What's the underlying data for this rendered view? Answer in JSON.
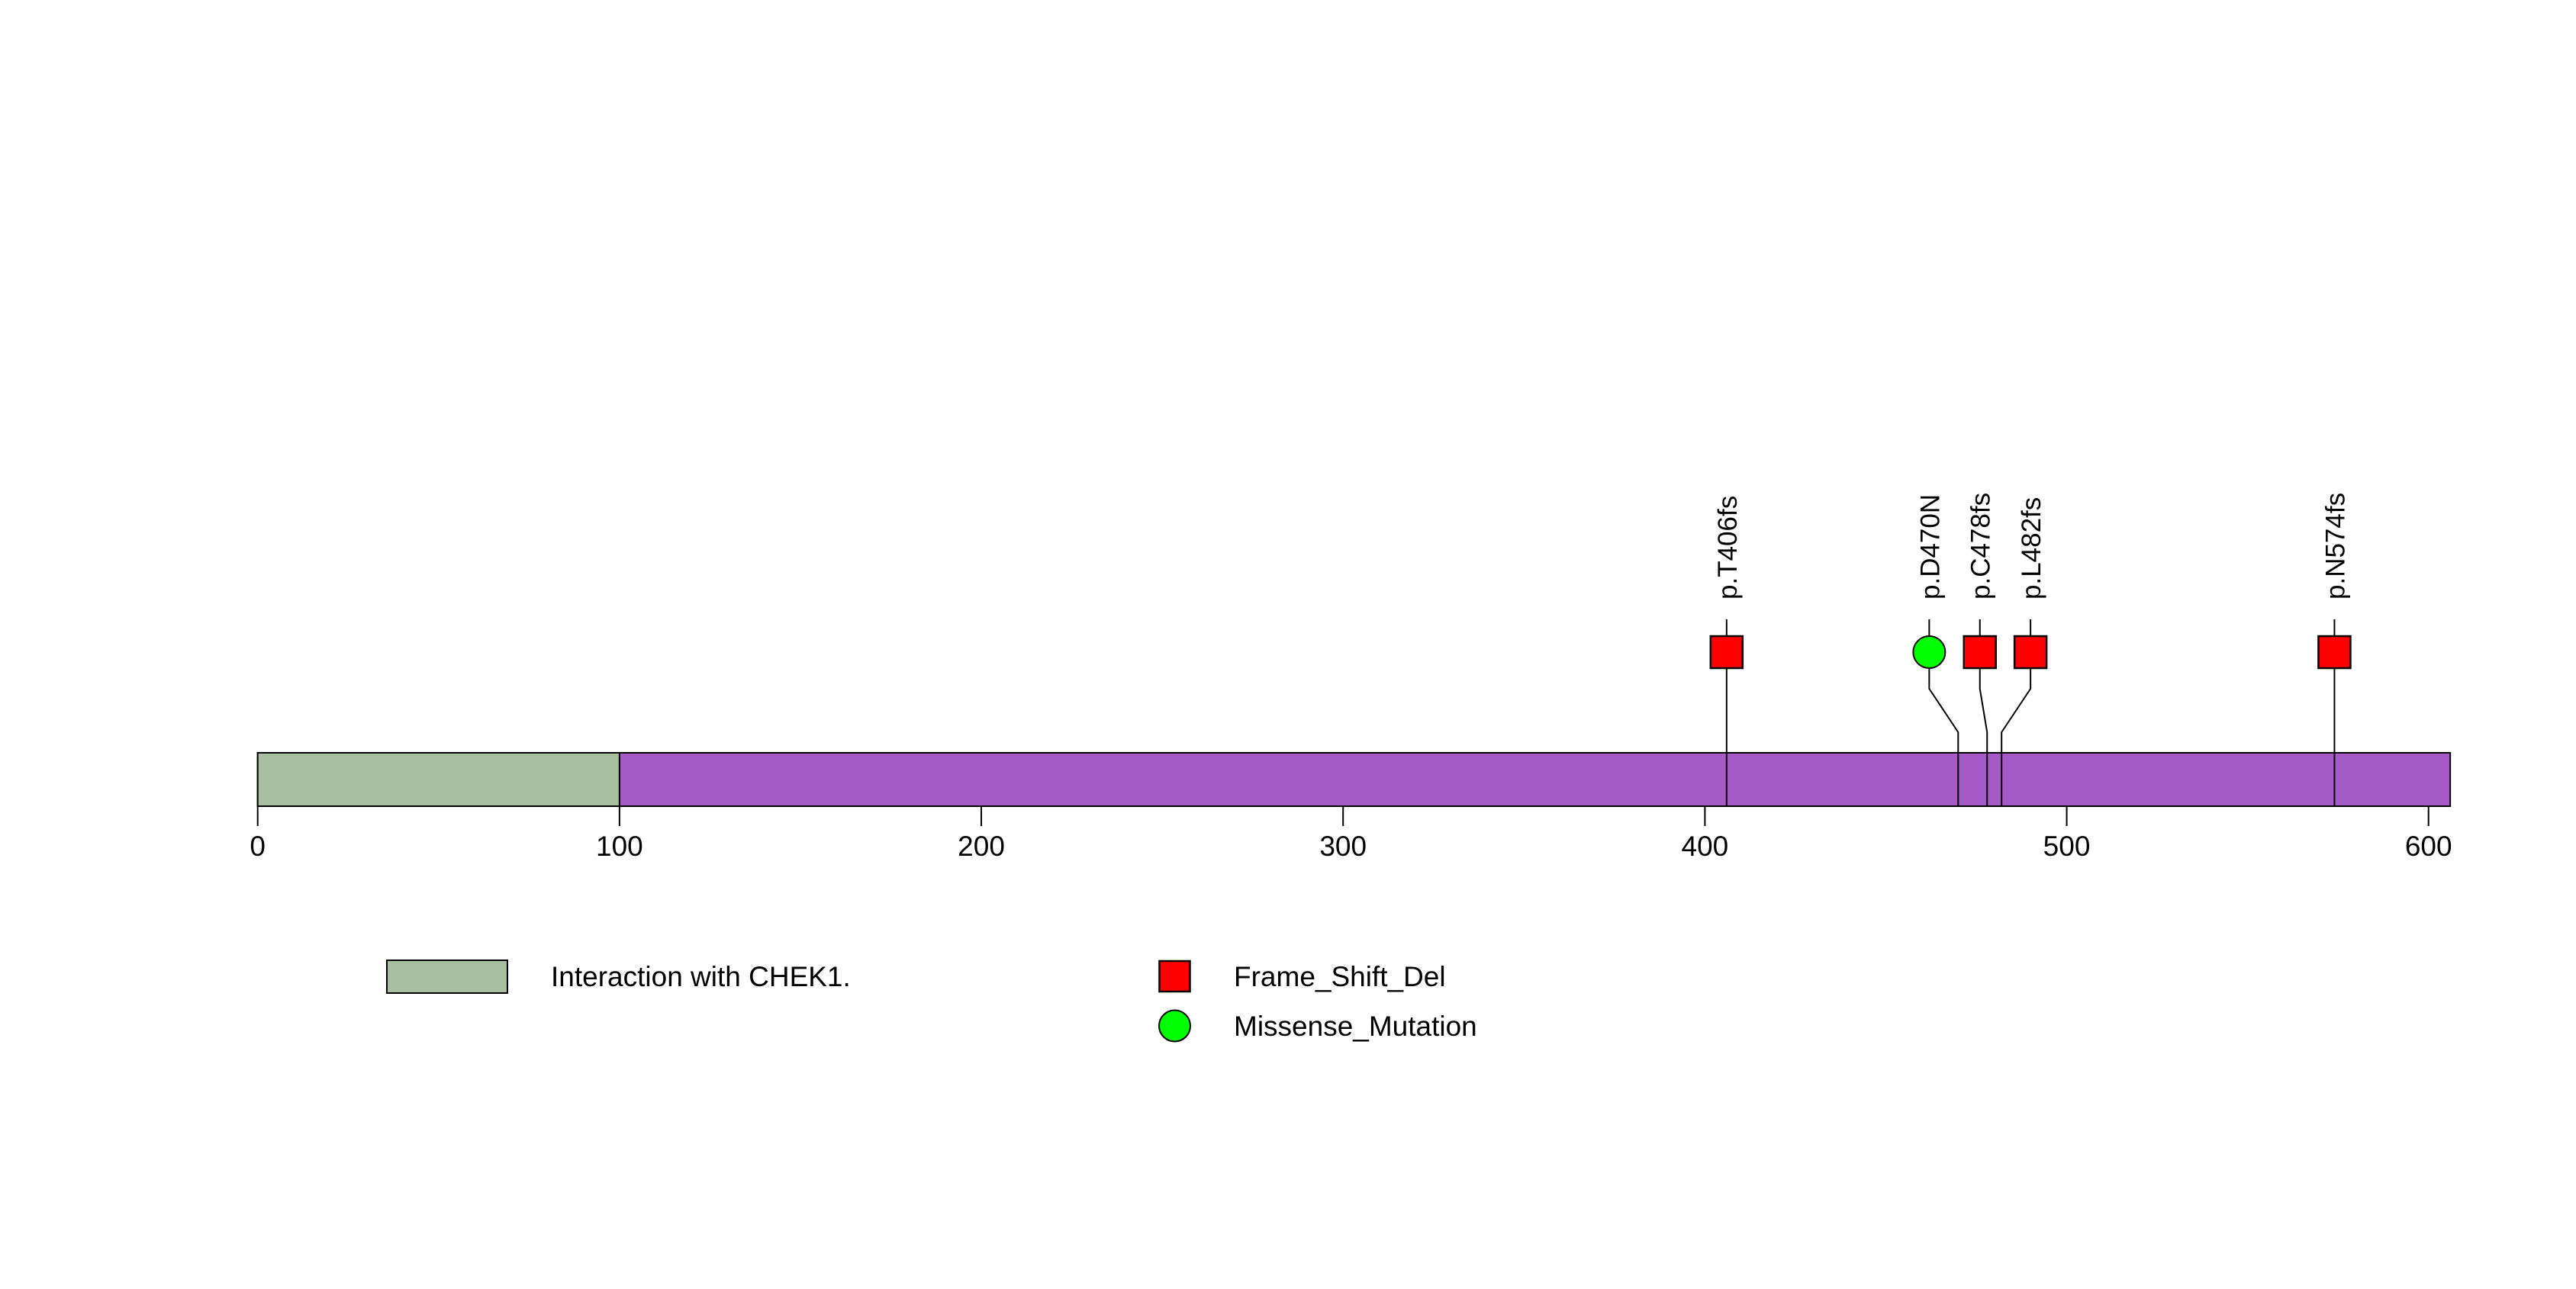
{
  "figure": {
    "background_color": "#FFFFFF",
    "text_color": "#000000",
    "line_color": "#000000"
  },
  "chart_data": {
    "type": "lollipop",
    "title": "",
    "xlabel": "",
    "ylabel": "",
    "protein_length": 606,
    "axis_ticks": [
      0,
      100,
      200,
      300,
      400,
      500,
      600
    ],
    "xlim": [
      0,
      606
    ],
    "grid": false,
    "legend_position": "bottom",
    "backbone_color": "#A55AC8",
    "domains": [
      {
        "label": "Interaction with CHEK1.",
        "start": 0,
        "end": 100,
        "color": "#A8C0A0"
      }
    ],
    "mutation_types": [
      {
        "name": "Frame_Shift_Del",
        "shape": "square",
        "color": "#FF0000"
      },
      {
        "name": "Missense_Mutation",
        "shape": "circle",
        "color": "#00FF00"
      }
    ],
    "mutations": [
      {
        "label": "p.T406fs",
        "position": 406,
        "display_position": 406,
        "type": "Frame_Shift_Del"
      },
      {
        "label": "p.D470N",
        "position": 470,
        "display_position": 462,
        "type": "Missense_Mutation"
      },
      {
        "label": "p.C478fs",
        "position": 478,
        "display_position": 476,
        "type": "Frame_Shift_Del"
      },
      {
        "label": "p.L482fs",
        "position": 482,
        "display_position": 490,
        "type": "Frame_Shift_Del"
      },
      {
        "label": "p.N574fs",
        "position": 574,
        "display_position": 574,
        "type": "Frame_Shift_Del"
      }
    ],
    "legend": {
      "domain_label": "Interaction with CHEK1.",
      "type_labels": [
        "Frame_Shift_Del",
        "Missense_Mutation"
      ]
    }
  }
}
